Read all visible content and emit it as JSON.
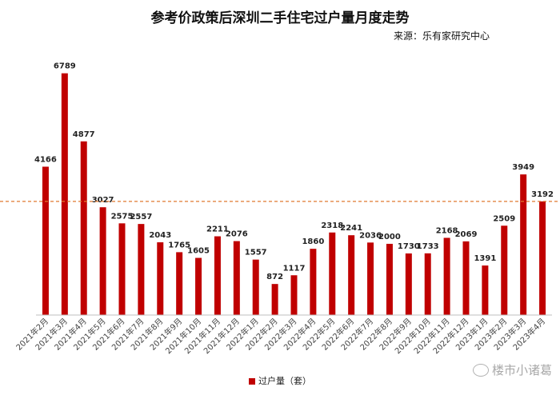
{
  "chart_data": {
    "type": "bar",
    "title": "参考价政策后深圳二手住宅过户量月度走势",
    "source": "来源：乐有家研究中心",
    "categories": [
      "2021年2月",
      "2021年3月",
      "2021年4月",
      "2021年5月",
      "2021年6月",
      "2021年7月",
      "2021年8月",
      "2021年9月",
      "2021年10月",
      "2021年11月",
      "2021年12月",
      "2022年1月",
      "2022年2月",
      "2022年3月",
      "2022年4月",
      "2022年5月",
      "2022年6月",
      "2022年7月",
      "2022年8月",
      "2022年9月",
      "2022年10月",
      "2022年11月",
      "2022年12月",
      "2023年1月",
      "2023年2月",
      "2023年3月",
      "2023年4月"
    ],
    "series": [
      {
        "name": "过户量（套）",
        "values": [
          4166,
          6789,
          4877,
          3027,
          2575,
          2557,
          2043,
          1765,
          1605,
          2211,
          2076,
          1557,
          872,
          1117,
          1860,
          2318,
          2241,
          2036,
          2000,
          1730,
          1733,
          2168,
          2069,
          1391,
          2509,
          3949,
          3192
        ]
      }
    ],
    "reference_line": 3192,
    "ylim": [
      0,
      7500
    ],
    "legend_position": "bottom",
    "grid": false,
    "bar_color": "#c00000",
    "reference_color": "#e07a30"
  },
  "watermark": "楼市小诸葛"
}
